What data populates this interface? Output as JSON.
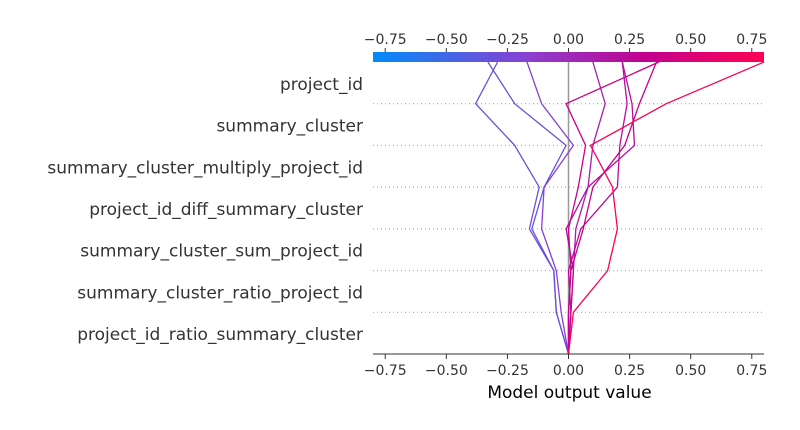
{
  "chart_data": {
    "type": "line",
    "subtype": "shap-decision-plot",
    "xlabel": "Model output value",
    "xlim": [
      -0.8,
      0.8
    ],
    "xticks": [
      "−0.75",
      "−0.50",
      "−0.25",
      "0.00",
      "0.25",
      "0.50",
      "0.75"
    ],
    "xtick_values": [
      -0.75,
      -0.5,
      -0.25,
      0.0,
      0.25,
      0.5,
      0.75
    ],
    "base_value": 0.0,
    "colorbar": {
      "min": -0.8,
      "max": 0.8,
      "colors": [
        "#008bfb",
        "#8b3fd0",
        "#c3008e",
        "#ff0052"
      ]
    },
    "features": [
      "project_id",
      "summary_cluster",
      "summary_cluster_multiply_project_id",
      "project_id_diff_summary_cluster",
      "summary_cluster_sum_project_id",
      "summary_cluster_ratio_project_id",
      "project_id_ratio_summary_cluster"
    ],
    "paths_note": "each series lists cumulative output from bottom (base) to top (final prediction)",
    "series": [
      {
        "values": [
          0.0,
          -0.05,
          -0.06,
          -0.15,
          -0.1,
          -0.01,
          -0.22,
          -0.33
        ]
      },
      {
        "values": [
          0.0,
          -0.05,
          -0.06,
          -0.16,
          -0.12,
          -0.22,
          -0.38,
          -0.29
        ]
      },
      {
        "values": [
          0.0,
          -0.03,
          -0.05,
          -0.11,
          -0.1,
          0.02,
          -0.11,
          -0.17
        ]
      },
      {
        "values": [
          0.0,
          0.01,
          0.02,
          0.03,
          0.08,
          0.1,
          0.15,
          0.1
        ]
      },
      {
        "values": [
          0.0,
          0.0,
          0.01,
          0.0,
          0.04,
          0.07,
          -0.01,
          0.37
        ]
      },
      {
        "values": [
          0.0,
          0.01,
          0.0,
          0.05,
          0.2,
          0.21,
          0.24,
          0.22
        ]
      },
      {
        "values": [
          0.0,
          0.0,
          0.01,
          0.06,
          0.1,
          0.23,
          0.29,
          0.36
        ]
      },
      {
        "values": [
          0.0,
          0.01,
          0.02,
          -0.01,
          0.08,
          0.27,
          0.26,
          0.22
        ]
      },
      {
        "values": [
          0.0,
          0.02,
          0.16,
          0.2,
          0.18,
          0.09,
          0.4,
          0.8
        ]
      }
    ]
  }
}
